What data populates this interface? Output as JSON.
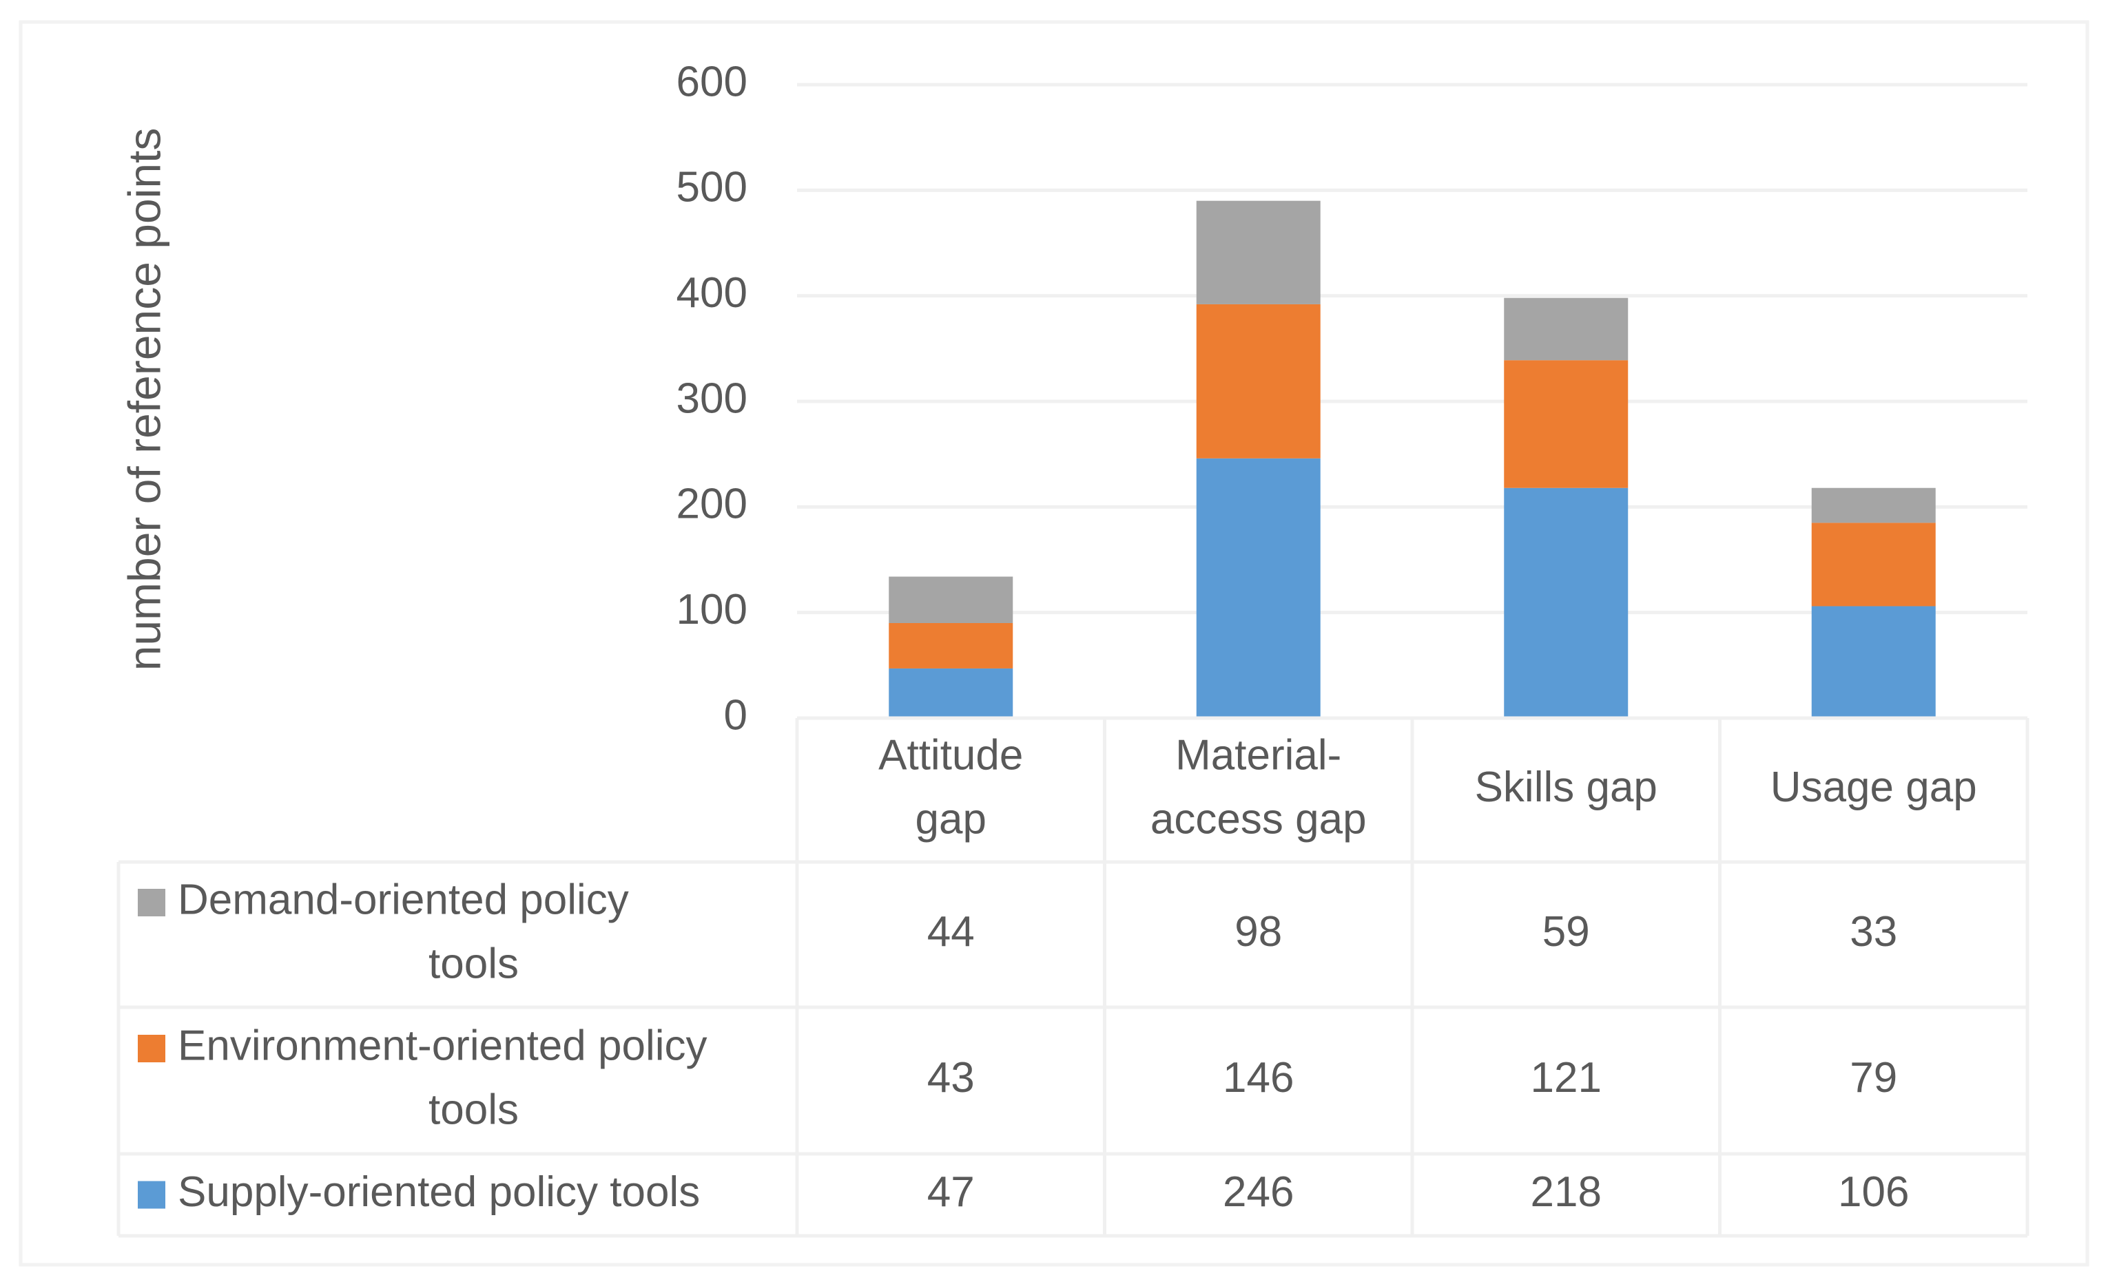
{
  "chart_data": {
    "type": "bar",
    "stacked": true,
    "title": "",
    "xlabel": "",
    "ylabel": "number of reference points",
    "ylim": [
      0,
      600
    ],
    "yticks": [
      0,
      100,
      200,
      300,
      400,
      500,
      600
    ],
    "grid": true,
    "categories": [
      [
        "Attitude",
        "gap"
      ],
      [
        "Material-",
        "access gap"
      ],
      [
        "Skills gap"
      ],
      [
        "Usage gap"
      ]
    ],
    "series": [
      {
        "name": "Supply-oriented policy tools",
        "name_lines": [
          "Supply-oriented policy tools"
        ],
        "color": "#5B9BD5",
        "values": [
          47,
          246,
          218,
          106
        ]
      },
      {
        "name": "Environment-oriented policy tools",
        "name_lines": [
          "Environment-oriented policy",
          "tools"
        ],
        "color": "#ED7D31",
        "values": [
          43,
          146,
          121,
          79
        ]
      },
      {
        "name": "Demand-oriented policy tools",
        "name_lines": [
          "Demand-oriented policy",
          "tools"
        ],
        "color": "#A5A5A5",
        "values": [
          44,
          98,
          59,
          33
        ]
      }
    ],
    "data_table": true,
    "table_row_order": [
      "Demand-oriented policy tools",
      "Environment-oriented policy tools",
      "Supply-oriented policy tools"
    ]
  },
  "colors": {
    "text": "#595959",
    "gridline": "#F0F0F0",
    "table_border": "#F0F0F0",
    "frame": "#F2F2F2"
  }
}
